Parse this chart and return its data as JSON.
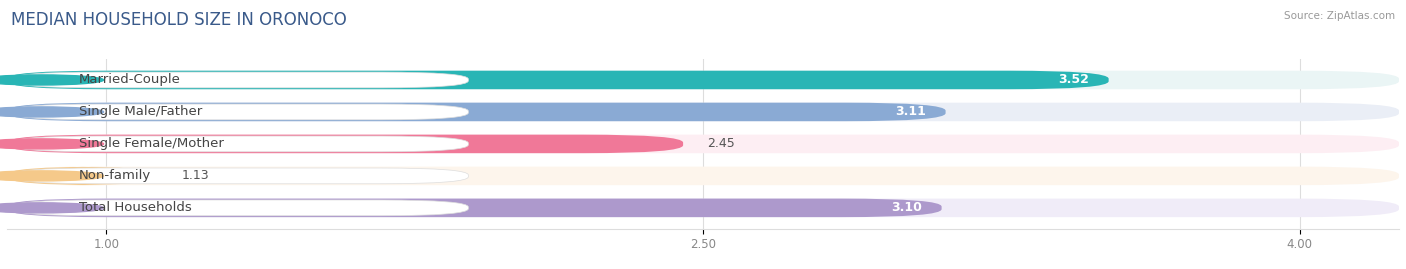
{
  "title": "MEDIAN HOUSEHOLD SIZE IN ORONOCO",
  "source": "Source: ZipAtlas.com",
  "categories": [
    "Married-Couple",
    "Single Male/Father",
    "Single Female/Mother",
    "Non-family",
    "Total Households"
  ],
  "values": [
    3.52,
    3.11,
    2.45,
    1.13,
    3.1
  ],
  "bar_colors": [
    "#29b5b5",
    "#8aaad4",
    "#f07898",
    "#f5c98a",
    "#ad99cc"
  ],
  "bar_bg_colors": [
    "#eaf5f5",
    "#eaeef6",
    "#fdeef3",
    "#fdf5ec",
    "#f0ecf8"
  ],
  "label_dot_colors": [
    "#29b5b5",
    "#8aaad4",
    "#f07898",
    "#f5c98a",
    "#ad99cc"
  ],
  "xlim": [
    0.75,
    4.25
  ],
  "xstart": 0.75,
  "xticks": [
    1.0,
    2.5,
    4.0
  ],
  "title_fontsize": 12,
  "label_fontsize": 9.5,
  "value_fontsize": 9,
  "bar_height": 0.58,
  "bar_gap": 0.18,
  "figsize": [
    14.06,
    2.69
  ],
  "dpi": 100
}
